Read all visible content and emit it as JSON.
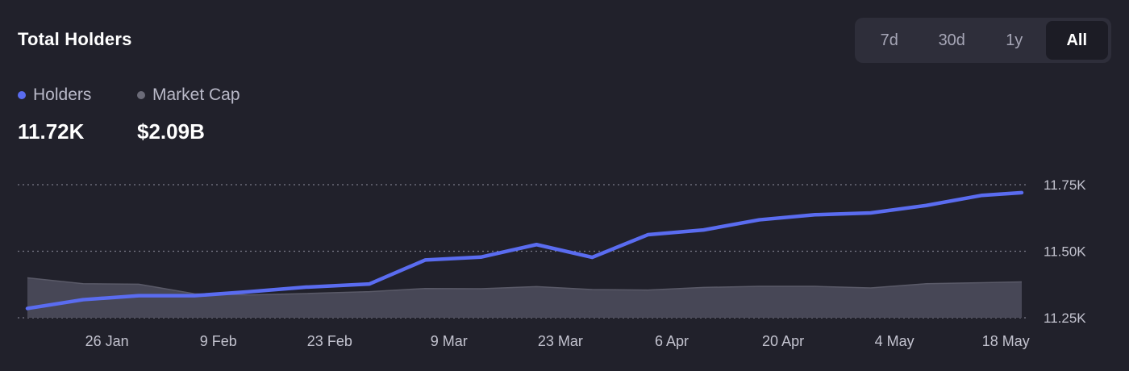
{
  "header": {
    "title": "Total Holders"
  },
  "ranges": [
    {
      "label": "7d",
      "active": false
    },
    {
      "label": "30d",
      "active": false
    },
    {
      "label": "1y",
      "active": false
    },
    {
      "label": "All",
      "active": true
    }
  ],
  "legend": {
    "holders": {
      "label": "Holders",
      "value": "11.72K",
      "color": "#5a6cf0"
    },
    "market_cap": {
      "label": "Market Cap",
      "value": "$2.09B",
      "color": "#6b6b78"
    }
  },
  "colors": {
    "background": "#21212b",
    "holders_line": "#5a6cf0",
    "market_cap_area": "#4a4a58",
    "gridline": "#7a7a88"
  },
  "chart_data": {
    "type": "line",
    "title": "",
    "xlabel": "",
    "ylabel": "",
    "x": [
      "2024-01-16",
      "2024-01-23",
      "2024-01-30",
      "2024-02-06",
      "2024-02-13",
      "2024-02-20",
      "2024-02-28",
      "2024-03-06",
      "2024-03-13",
      "2024-03-20",
      "2024-03-27",
      "2024-04-03",
      "2024-04-10",
      "2024-04-17",
      "2024-04-24",
      "2024-05-01",
      "2024-05-08",
      "2024-05-15",
      "2024-05-20"
    ],
    "x_ticks": [
      "26 Jan",
      "9 Feb",
      "23 Feb",
      "9 Mar",
      "23 Mar",
      "6 Apr",
      "20 Apr",
      "4 May",
      "18 May"
    ],
    "x_tick_dates": [
      "2024-01-26",
      "2024-02-09",
      "2024-02-23",
      "2024-03-09",
      "2024-03-23",
      "2024-04-06",
      "2024-04-20",
      "2024-05-04",
      "2024-05-18"
    ],
    "y_ticks": [
      "11.25K",
      "11.50K",
      "11.75K"
    ],
    "y_tick_values": [
      11250,
      11500,
      11750
    ],
    "ylim": [
      11250,
      11750
    ],
    "grid": true,
    "series": [
      {
        "name": "Holders",
        "values": [
          11285,
          11318,
          11333,
          11333,
          11348,
          11365,
          11377,
          11467,
          11478,
          11525,
          11477,
          11562,
          11580,
          11618,
          11637,
          11644,
          11672,
          11710,
          11720
        ]
      },
      {
        "name": "Market Cap",
        "type": "area",
        "values": [
          11400,
          11378,
          11376,
          11340,
          11336,
          11341,
          11348,
          11360,
          11359,
          11367,
          11356,
          11354,
          11364,
          11368,
          11368,
          11362,
          11378,
          11382,
          11385
        ]
      }
    ]
  }
}
